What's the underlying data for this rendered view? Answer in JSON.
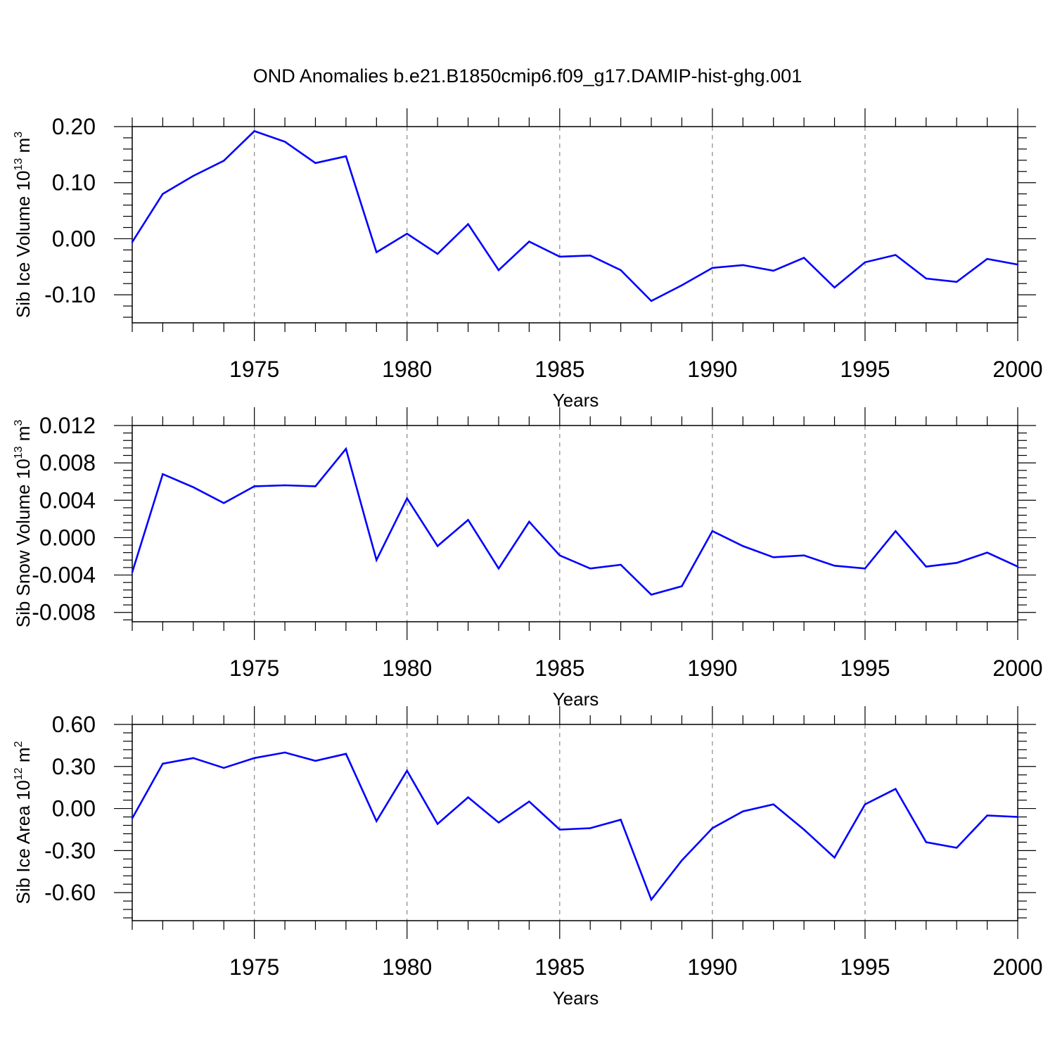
{
  "figure": {
    "title": "OND Anomalies b.e21.B1850cmip6.f09_g17.DAMIP-hist-ghg.001",
    "line_color": "#0000ff",
    "grid_color": "#888888"
  },
  "chart_data": [
    {
      "type": "line",
      "xlabel": "Years",
      "ylabel": {
        "text": "Sib Ice Volume 10",
        "exponent": "13",
        "unit": " m",
        "unit_exponent": "3"
      },
      "xlim": [
        1971,
        2000
      ],
      "ylim": [
        -0.15,
        0.2
      ],
      "xticks": [
        1975,
        1980,
        1985,
        1990,
        1995,
        2000
      ],
      "yticks": [
        0.2,
        0.1,
        0.0,
        -0.1
      ],
      "ytick_labels": [
        "0.20",
        "0.10",
        "0.00",
        "-0.10"
      ],
      "grid": "vertical dashed at major x ticks",
      "x": [
        1971,
        1972,
        1973,
        1974,
        1975,
        1976,
        1977,
        1978,
        1979,
        1980,
        1981,
        1982,
        1983,
        1984,
        1985,
        1986,
        1987,
        1988,
        1989,
        1990,
        1991,
        1992,
        1993,
        1994,
        1995,
        1996,
        1997,
        1998,
        1999,
        2000
      ],
      "values": [
        -0.006,
        0.08,
        0.112,
        0.139,
        0.192,
        0.173,
        0.135,
        0.147,
        -0.024,
        0.009,
        -0.027,
        0.026,
        -0.056,
        -0.005,
        -0.032,
        -0.03,
        -0.056,
        -0.111,
        -0.083,
        -0.052,
        -0.047,
        -0.057,
        -0.034,
        -0.087,
        -0.042,
        -0.029,
        -0.071,
        -0.077,
        -0.036,
        -0.046
      ]
    },
    {
      "type": "line",
      "xlabel": "Years",
      "ylabel": {
        "text": "Sib Snow Volume 10",
        "exponent": "13",
        "unit": " m",
        "unit_exponent": "3"
      },
      "xlim": [
        1971,
        2000
      ],
      "ylim": [
        -0.009,
        0.012
      ],
      "xticks": [
        1975,
        1980,
        1985,
        1990,
        1995,
        2000
      ],
      "yticks": [
        0.012,
        0.008,
        0.004,
        0.0,
        -0.004,
        -0.008
      ],
      "ytick_labels": [
        "0.012",
        "0.008",
        "0.004",
        "0.000",
        "-0.004",
        "-0.008"
      ],
      "grid": "vertical dashed at major x ticks",
      "x": [
        1971,
        1972,
        1973,
        1974,
        1975,
        1976,
        1977,
        1978,
        1979,
        1980,
        1981,
        1982,
        1983,
        1984,
        1985,
        1986,
        1987,
        1988,
        1989,
        1990,
        1991,
        1992,
        1993,
        1994,
        1995,
        1996,
        1997,
        1998,
        1999,
        2000
      ],
      "values": [
        -0.0037,
        0.0068,
        0.0054,
        0.0037,
        0.0055,
        0.0056,
        0.0055,
        0.0095,
        -0.0024,
        0.0042,
        -0.0009,
        0.0019,
        -0.0033,
        0.0017,
        -0.0019,
        -0.0033,
        -0.0029,
        -0.0061,
        -0.0052,
        0.0007,
        -0.0009,
        -0.0021,
        -0.0019,
        -0.003,
        -0.0033,
        0.0007,
        -0.0031,
        -0.0027,
        -0.0016,
        -0.0031
      ]
    },
    {
      "type": "line",
      "xlabel": "Years",
      "ylabel": {
        "text": "Sib Ice Area 10",
        "exponent": "12",
        "unit": " m",
        "unit_exponent": "2"
      },
      "xlim": [
        1971,
        2000
      ],
      "ylim": [
        -0.8,
        0.6
      ],
      "xticks": [
        1975,
        1980,
        1985,
        1990,
        1995,
        2000
      ],
      "yticks": [
        0.6,
        0.3,
        0.0,
        -0.3,
        -0.6
      ],
      "ytick_labels": [
        "0.60",
        "0.30",
        "0.00",
        "-0.30",
        "-0.60"
      ],
      "grid": "vertical dashed at major x ticks",
      "x": [
        1971,
        1972,
        1973,
        1974,
        1975,
        1976,
        1977,
        1978,
        1979,
        1980,
        1981,
        1982,
        1983,
        1984,
        1985,
        1986,
        1987,
        1988,
        1989,
        1990,
        1991,
        1992,
        1993,
        1994,
        1995,
        1996,
        1997,
        1998,
        1999,
        2000
      ],
      "values": [
        -0.07,
        0.32,
        0.36,
        0.29,
        0.36,
        0.4,
        0.34,
        0.39,
        -0.09,
        0.27,
        -0.11,
        0.08,
        -0.1,
        0.05,
        -0.15,
        -0.14,
        -0.08,
        -0.65,
        -0.37,
        -0.14,
        -0.02,
        0.03,
        -0.15,
        -0.35,
        0.03,
        0.14,
        -0.24,
        -0.28,
        -0.05,
        -0.06
      ]
    }
  ]
}
